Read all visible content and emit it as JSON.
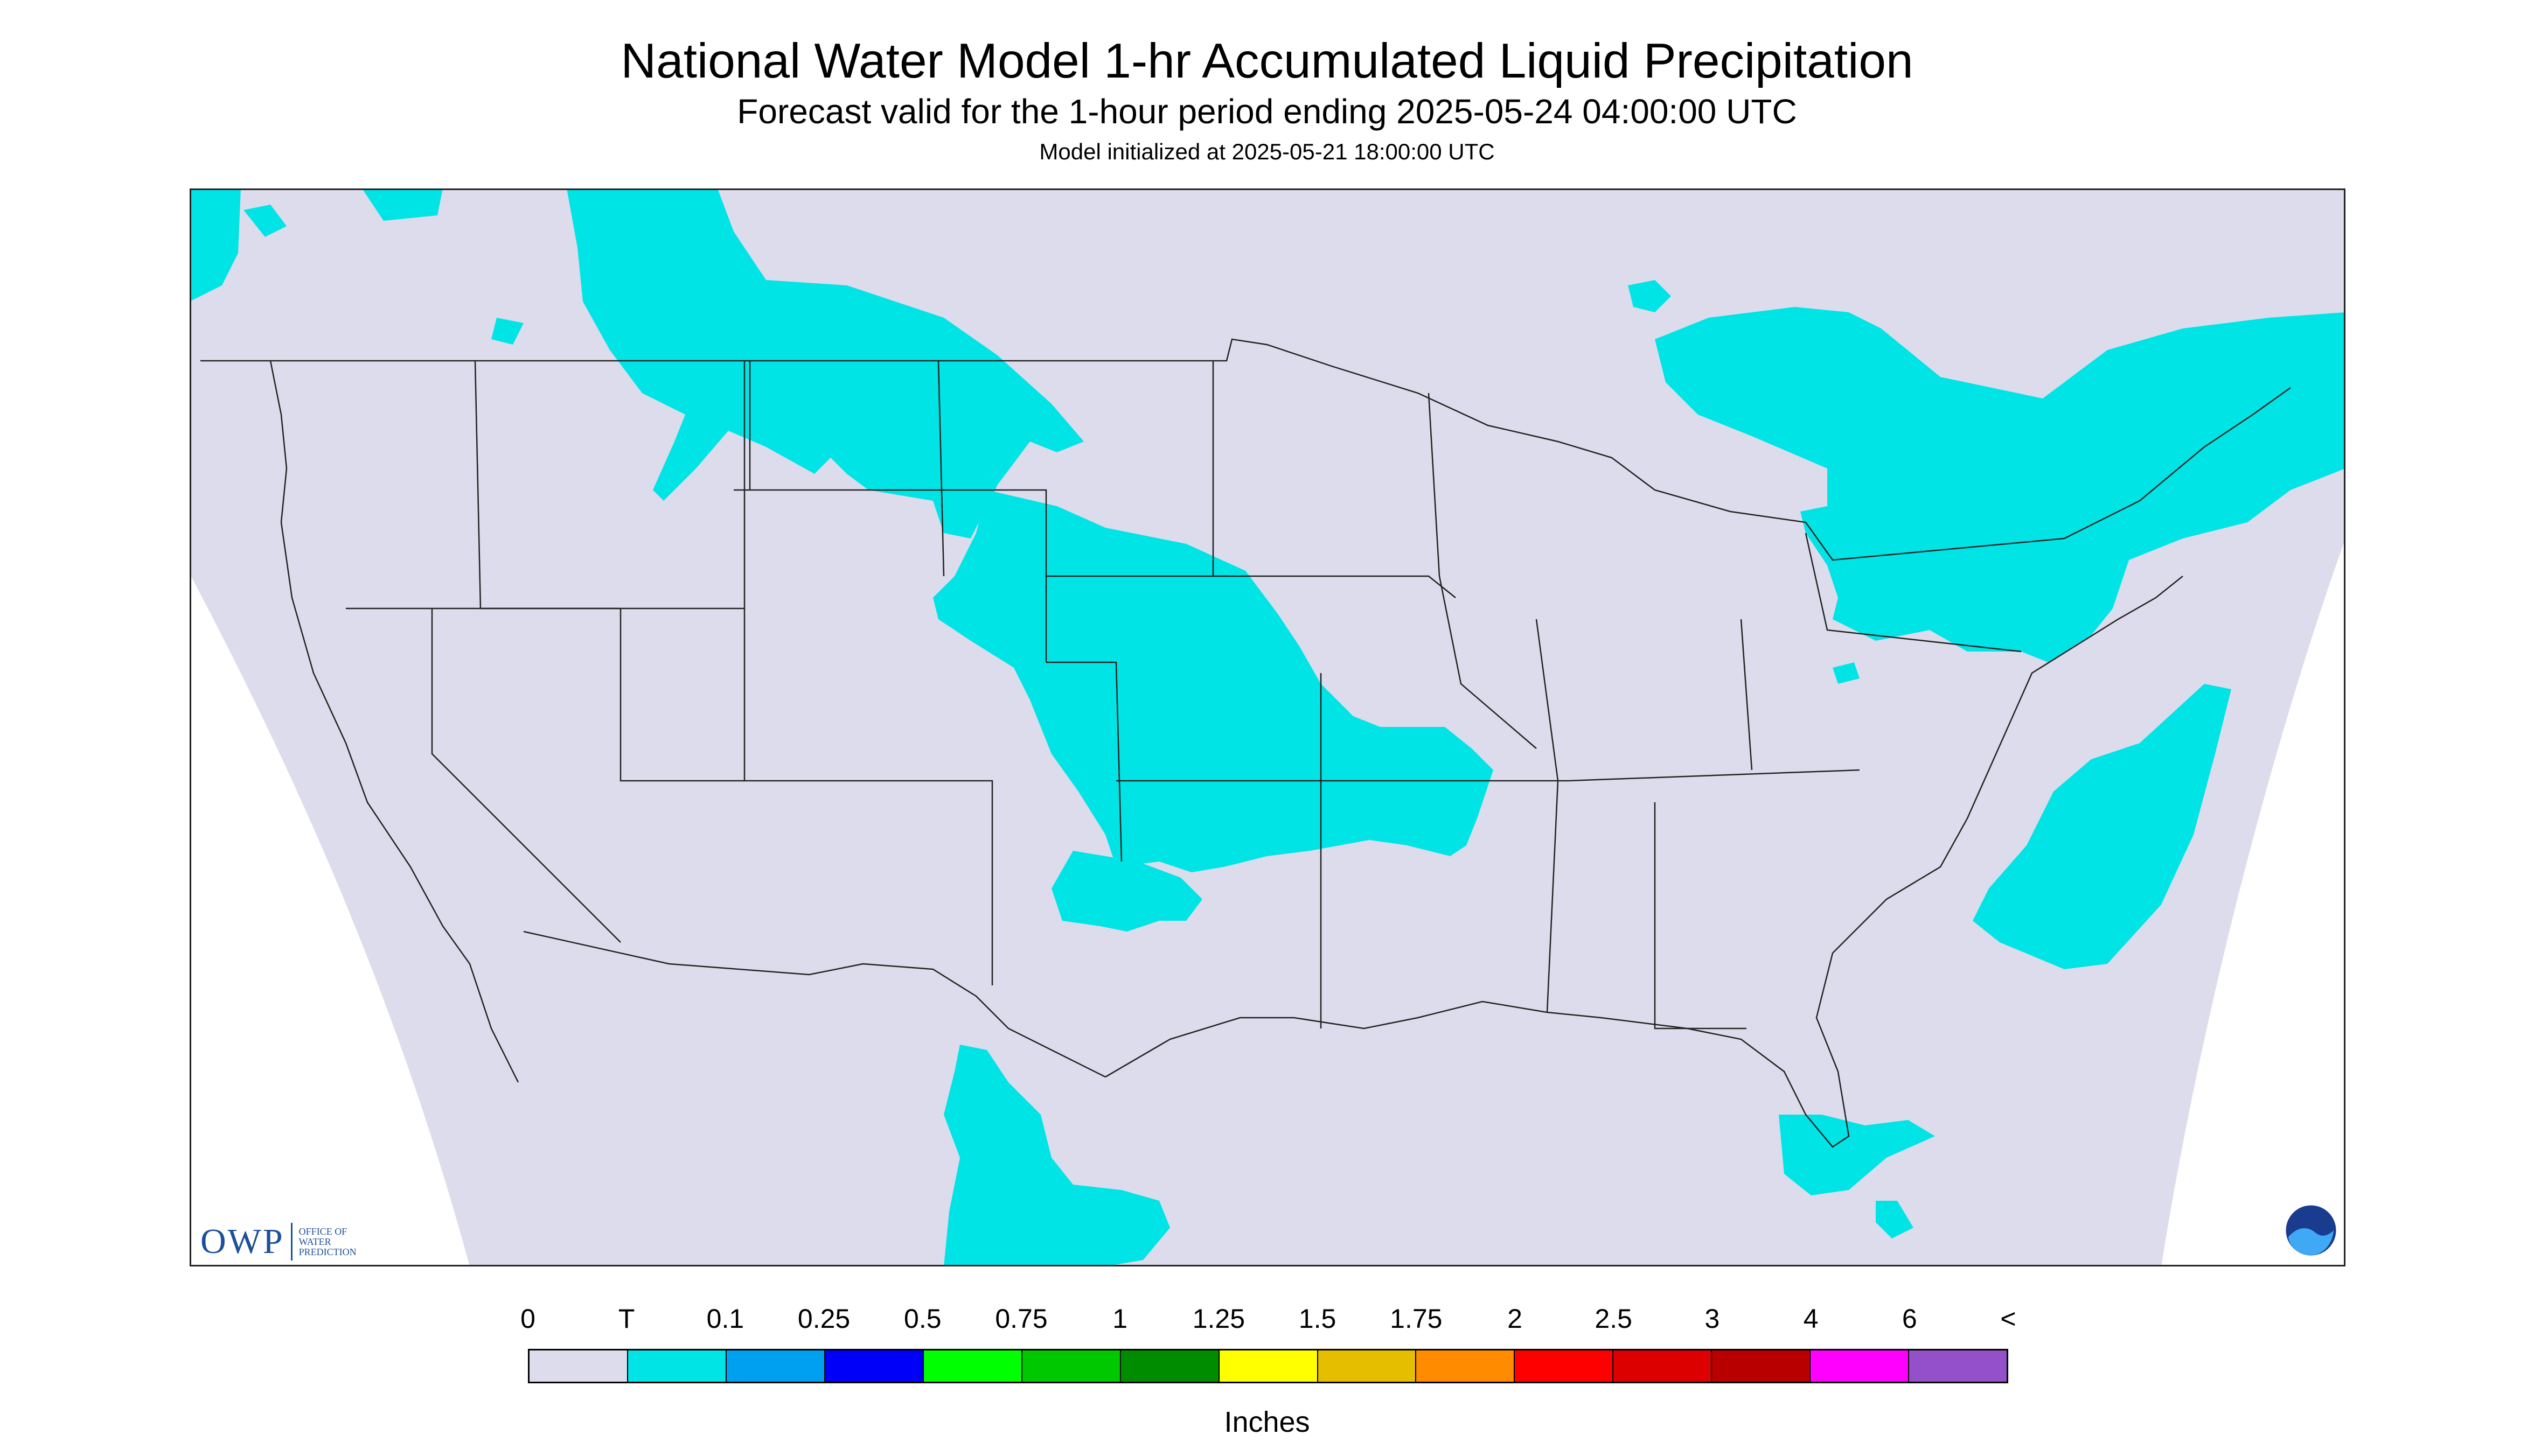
{
  "title": "National Water Model 1-hr Accumulated Liquid Precipitation",
  "subtitle": "Forecast valid for the 1-hour period ending 2025-05-24 04:00:00 UTC",
  "init_text": "Model initialized at 2025-05-21 18:00:00 UTC",
  "colors": {
    "no_data": "#dcdcec",
    "land_line": "#222222",
    "trace": "#00e4e6"
  },
  "legend": {
    "units": "Inches",
    "labels": [
      "0",
      "T",
      "0.1",
      "0.25",
      "0.5",
      "0.75",
      "1",
      "1.25",
      "1.5",
      "1.75",
      "2",
      "2.5",
      "3",
      "4",
      "6",
      "<"
    ],
    "colors": [
      "#dcdcec",
      "#00e4e6",
      "#00a0f0",
      "#0000f8",
      "#00ff00",
      "#00c800",
      "#008c00",
      "#ffff00",
      "#e6be00",
      "#ff8c00",
      "#ff0000",
      "#dc0000",
      "#b80000",
      "#ff00ff",
      "#9450c8"
    ]
  },
  "logos": {
    "owp_big": "OWP",
    "owp_small": [
      "OFFICE OF",
      "WATER",
      "PREDICTION"
    ],
    "noaa": "NOAA"
  }
}
